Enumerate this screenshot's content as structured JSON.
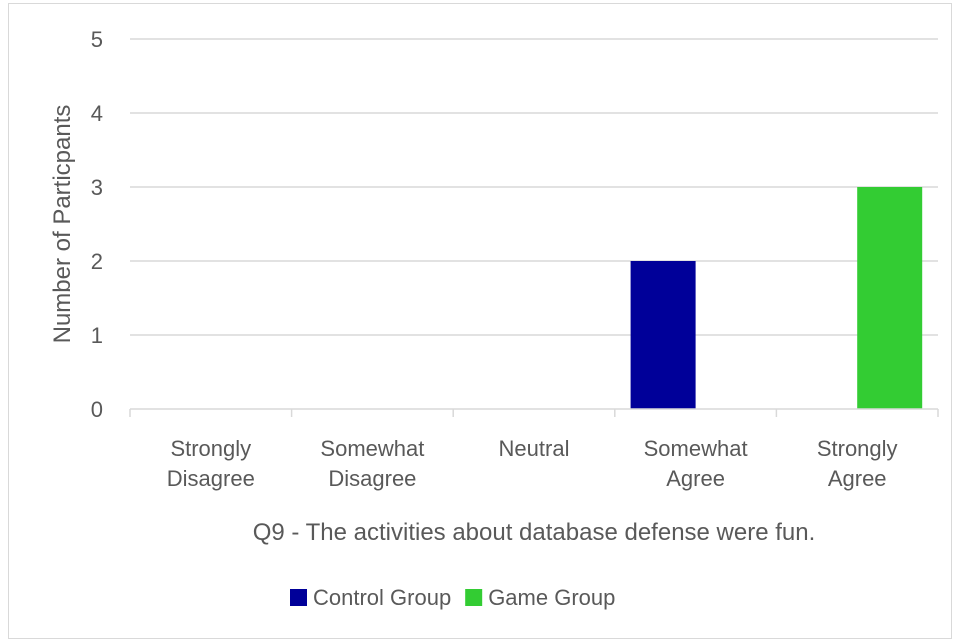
{
  "chart_data": {
    "type": "bar",
    "categories": [
      [
        "Strongly",
        "Disagree"
      ],
      [
        "Somewhat",
        "Disagree"
      ],
      [
        "Neutral"
      ],
      [
        "Somewhat",
        "Agree"
      ],
      [
        "Strongly",
        "Agree"
      ]
    ],
    "series": [
      {
        "name": "Control Group",
        "color": "#000099",
        "values": [
          0,
          0,
          0,
          2,
          0
        ]
      },
      {
        "name": "Game Group",
        "color": "#33cc33",
        "values": [
          0,
          0,
          0,
          0,
          3
        ]
      }
    ],
    "xlabel": "Q9 - The activities about database defense were fun.",
    "ylabel": "Number of Particpants",
    "ylim": [
      0,
      5
    ],
    "yticks": [
      0,
      1,
      2,
      3,
      4,
      5
    ],
    "grid": true,
    "legend_position": "bottom"
  }
}
